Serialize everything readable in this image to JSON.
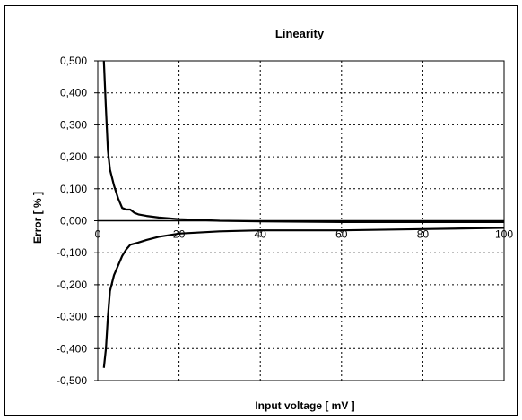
{
  "chart_data": {
    "type": "line",
    "title": "Linearity",
    "xlabel": "Input voltage [ mV ]",
    "ylabel": "Error [ % ]",
    "xlim": [
      0,
      100
    ],
    "ylim": [
      -0.5,
      0.5
    ],
    "x_ticks": [
      {
        "value": 0,
        "label": "0"
      },
      {
        "value": 20,
        "label": "20"
      },
      {
        "value": 40,
        "label": "40"
      },
      {
        "value": 60,
        "label": "60"
      },
      {
        "value": 80,
        "label": "80"
      },
      {
        "value": 100,
        "label": "100"
      }
    ],
    "y_ticks": [
      {
        "value": 0.5,
        "label": "0,500"
      },
      {
        "value": 0.4,
        "label": "0,400"
      },
      {
        "value": 0.3,
        "label": "0,300"
      },
      {
        "value": 0.2,
        "label": "0,200"
      },
      {
        "value": 0.1,
        "label": "0,100"
      },
      {
        "value": 0.0,
        "label": "0,000"
      },
      {
        "value": -0.1,
        "label": "-0,100"
      },
      {
        "value": -0.2,
        "label": "-0,200"
      },
      {
        "value": -0.3,
        "label": "-0,300"
      },
      {
        "value": -0.4,
        "label": "-0,400"
      },
      {
        "value": -0.5,
        "label": "-0,500"
      }
    ],
    "grid": true,
    "legend": "none",
    "series": [
      {
        "color": "#000000",
        "x": [
          1.5,
          2,
          2.5,
          3,
          4,
          5,
          6,
          7,
          8,
          9,
          10,
          12,
          15,
          20,
          30,
          40,
          60,
          80,
          100
        ],
        "y": [
          0.5,
          0.35,
          0.22,
          0.16,
          0.11,
          0.07,
          0.04,
          0.035,
          0.035,
          0.025,
          0.02,
          0.015,
          0.01,
          0.005,
          0.0,
          -0.002,
          -0.004,
          -0.004,
          -0.004
        ]
      },
      {
        "color": "#000000",
        "x": [
          1.5,
          2,
          2.5,
          3,
          4,
          5,
          6,
          7,
          8,
          10,
          12,
          15,
          20,
          30,
          40,
          60,
          80,
          100
        ],
        "y": [
          -0.46,
          -0.4,
          -0.3,
          -0.22,
          -0.17,
          -0.14,
          -0.11,
          -0.09,
          -0.075,
          -0.068,
          -0.06,
          -0.05,
          -0.04,
          -0.033,
          -0.03,
          -0.03,
          -0.026,
          -0.022
        ]
      }
    ]
  }
}
